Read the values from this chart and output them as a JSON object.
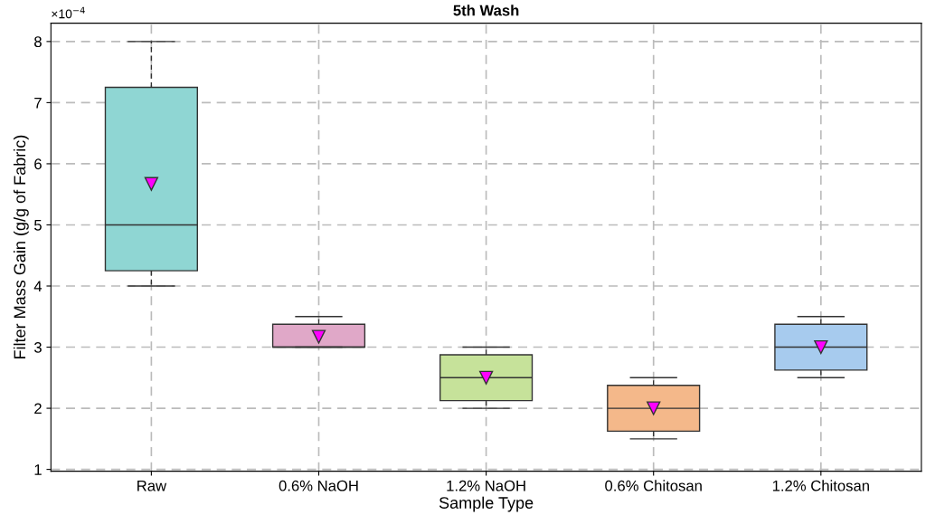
{
  "chart_data": {
    "type": "box",
    "title": "5th Wash",
    "xlabel": "Sample Type",
    "ylabel": "Filter Mass Gain (g/g of Fabric)",
    "annotations": [
      "×10$^{−4}$"
    ],
    "categories": [
      "Raw",
      "0.6% NaOH",
      "1.2% NaOH",
      "0.6% Chitosan",
      "1.2% Chitosan"
    ],
    "colors": [
      "#8fd6d3",
      "#e0a8c8",
      "#c6e29a",
      "#f4b88a",
      "#a7cbee"
    ],
    "boxes": [
      {
        "low": 4,
        "q1": 4.25,
        "median": 5,
        "q3": 7.25,
        "high": 8,
        "mean": 5.67
      },
      {
        "low": 3,
        "q1": 3,
        "median": 3,
        "q3": 3.375,
        "high": 3.5,
        "mean": 3.17
      },
      {
        "low": 2,
        "q1": 2.125,
        "median": 2.5,
        "q3": 2.875,
        "high": 3,
        "mean": 2.5
      },
      {
        "low": 1.5,
        "q1": 1.625,
        "median": 2,
        "q3": 2.375,
        "high": 2.5,
        "mean": 2
      },
      {
        "low": 2.5,
        "q1": 2.625,
        "median": 3,
        "q3": 3.375,
        "high": 3.5,
        "mean": 3
      }
    ],
    "marker": "triangle",
    "ylim": [
      0.97,
      8.3
    ],
    "yticks": [
      1,
      2,
      3,
      4,
      5,
      6,
      7,
      8
    ],
    "grid": true
  }
}
